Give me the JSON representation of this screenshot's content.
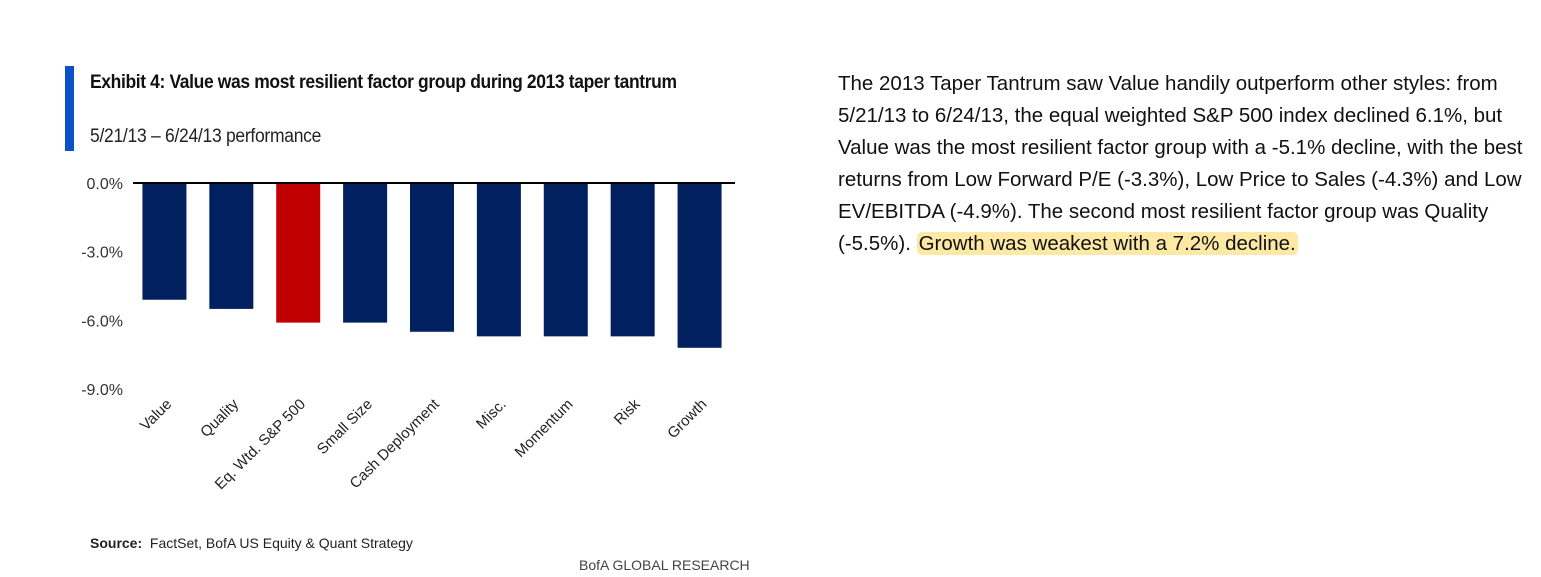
{
  "chart_data": {
    "type": "bar",
    "title": "Exhibit 4: Value was most resilient factor group during 2013 taper tantrum",
    "subtitle": "5/21/13 – 6/24/13 performance",
    "categories": [
      "Value",
      "Quality",
      "Eq. Wtd. S&P 500",
      "Small Size",
      "Cash Deployment",
      "Misc.",
      "Momentum",
      "Risk",
      "Growth"
    ],
    "values": [
      -5.1,
      -5.5,
      -6.1,
      -6.1,
      -6.5,
      -6.7,
      -6.7,
      -6.7,
      -7.2
    ],
    "unit": "%",
    "ylim": [
      -9.0,
      0.0
    ],
    "yticks": [
      0.0,
      -3.0,
      -6.0,
      -9.0
    ],
    "ytick_labels": [
      "0.0%",
      "-3.0%",
      "-6.0%",
      "-9.0%"
    ],
    "grid": false,
    "colors": {
      "default": "#002060",
      "highlight": "#c00000"
    },
    "highlight_category": "Eq. Wtd. S&P 500",
    "xlabel": "",
    "ylabel": ""
  },
  "source": {
    "label": "Source:",
    "text": "FactSet, BofA US Equity & Quant Strategy"
  },
  "footer": "BofA GLOBAL RESEARCH",
  "accent_color": "#0a50c8",
  "paragraph": {
    "text": "The 2013 Taper Tantrum saw Value handily outperform other styles: from 5/21/13 to 6/24/13, the equal weighted S&P 500 index declined 6.1%, but Value was the most resilient factor group with a -5.1% decline, with the best returns from Low Forward P/E (-3.3%), Low Price to Sales (-4.3%) and Low EV/EBITDA (-4.9%). The second most resilient factor group was Quality (-5.5%). ",
    "highlight": "Growth was weakest with a 7.2% decline.",
    "highlight_color": "#fde9a4"
  }
}
